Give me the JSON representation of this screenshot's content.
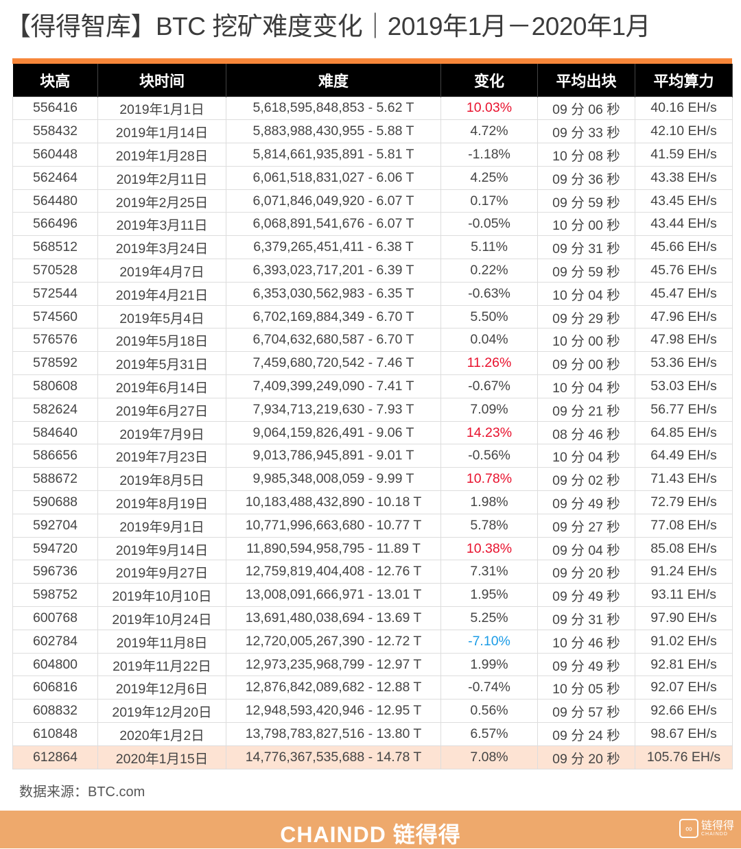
{
  "title": "【得得智库】BTC 挖矿难度变化｜2019年1月－2020年1月",
  "headers": [
    "块高",
    "块时间",
    "难度",
    "变化",
    "平均出块",
    "平均算力"
  ],
  "colors": {
    "accent": "#f7873a",
    "positive_large": "#e8112d",
    "negative_large": "#1a9be6",
    "highlight_row": "#fde3d3",
    "footer": "#eea96c"
  },
  "rows": [
    [
      "556416",
      "2019年1月1日",
      "5,618,595,848,853 - 5.62 T",
      "10.03%",
      "09 分 06 秒",
      "40.16 EH/s",
      "#e8112d"
    ],
    [
      "558432",
      "2019年1月14日",
      "5,883,988,430,955 - 5.88 T",
      "4.72%",
      "09 分 33 秒",
      "42.10 EH/s",
      ""
    ],
    [
      "560448",
      "2019年1月28日",
      "5,814,661,935,891 - 5.81 T",
      "-1.18%",
      "10 分 08 秒",
      "41.59 EH/s",
      ""
    ],
    [
      "562464",
      "2019年2月11日",
      "6,061,518,831,027 - 6.06 T",
      "4.25%",
      "09 分 36 秒",
      "43.38 EH/s",
      ""
    ],
    [
      "564480",
      "2019年2月25日",
      "6,071,846,049,920 - 6.07 T",
      "0.17%",
      "09 分 59 秒",
      "43.45 EH/s",
      ""
    ],
    [
      "566496",
      "2019年3月11日",
      "6,068,891,541,676 - 6.07 T",
      "-0.05%",
      "10 分 00 秒",
      "43.44 EH/s",
      ""
    ],
    [
      "568512",
      "2019年3月24日",
      "6,379,265,451,411 - 6.38 T",
      "5.11%",
      "09 分 31 秒",
      "45.66 EH/s",
      ""
    ],
    [
      "570528",
      "2019年4月7日",
      "6,393,023,717,201 - 6.39 T",
      "0.22%",
      "09 分 59 秒",
      "45.76 EH/s",
      ""
    ],
    [
      "572544",
      "2019年4月21日",
      "6,353,030,562,983 - 6.35 T",
      "-0.63%",
      "10 分 04 秒",
      "45.47 EH/s",
      ""
    ],
    [
      "574560",
      "2019年5月4日",
      "6,702,169,884,349 - 6.70 T",
      "5.50%",
      "09 分 29 秒",
      "47.96 EH/s",
      ""
    ],
    [
      "576576",
      "2019年5月18日",
      "6,704,632,680,587 - 6.70 T",
      "0.04%",
      "10 分 00 秒",
      "47.98 EH/s",
      ""
    ],
    [
      "578592",
      "2019年5月31日",
      "7,459,680,720,542 - 7.46 T",
      "11.26%",
      "09 分 00 秒",
      "53.36 EH/s",
      "#e8112d"
    ],
    [
      "580608",
      "2019年6月14日",
      "7,409,399,249,090 - 7.41 T",
      "-0.67%",
      "10 分 04 秒",
      "53.03 EH/s",
      ""
    ],
    [
      "582624",
      "2019年6月27日",
      "7,934,713,219,630 - 7.93 T",
      "7.09%",
      "09 分 21 秒",
      "56.77 EH/s",
      ""
    ],
    [
      "584640",
      "2019年7月9日",
      "9,064,159,826,491 - 9.06 T",
      "14.23%",
      "08 分 46 秒",
      "64.85 EH/s",
      "#e8112d"
    ],
    [
      "586656",
      "2019年7月23日",
      "9,013,786,945,891 - 9.01 T",
      "-0.56%",
      "10 分 04 秒",
      "64.49 EH/s",
      ""
    ],
    [
      "588672",
      "2019年8月5日",
      "9,985,348,008,059 - 9.99 T",
      "10.78%",
      "09 分 02 秒",
      "71.43 EH/s",
      "#e8112d"
    ],
    [
      "590688",
      "2019年8月19日",
      "10,183,488,432,890 - 10.18 T",
      "1.98%",
      "09 分 49 秒",
      "72.79 EH/s",
      ""
    ],
    [
      "592704",
      "2019年9月1日",
      "10,771,996,663,680 - 10.77 T",
      "5.78%",
      "09 分 27 秒",
      "77.08 EH/s",
      ""
    ],
    [
      "594720",
      "2019年9月14日",
      "11,890,594,958,795 - 11.89 T",
      "10.38%",
      "09 分 04 秒",
      "85.08 EH/s",
      "#e8112d"
    ],
    [
      "596736",
      "2019年9月27日",
      "12,759,819,404,408 - 12.76 T",
      "7.31%",
      "09 分 20 秒",
      "91.24 EH/s",
      ""
    ],
    [
      "598752",
      "2019年10月10日",
      "13,008,091,666,971 - 13.01 T",
      "1.95%",
      "09 分 49 秒",
      "93.11 EH/s",
      ""
    ],
    [
      "600768",
      "2019年10月24日",
      "13,691,480,038,694 - 13.69 T",
      "5.25%",
      "09 分 31 秒",
      "97.90 EH/s",
      ""
    ],
    [
      "602784",
      "2019年11月8日",
      "12,720,005,267,390 - 12.72 T",
      "-7.10%",
      "10 分 46 秒",
      "91.02 EH/s",
      "#1a9be6"
    ],
    [
      "604800",
      "2019年11月22日",
      "12,973,235,968,799 - 12.97 T",
      "1.99%",
      "09 分 49 秒",
      "92.81 EH/s",
      ""
    ],
    [
      "606816",
      "2019年12月6日",
      "12,876,842,089,682 - 12.88 T",
      "-0.74%",
      "10 分 05 秒",
      "92.07 EH/s",
      ""
    ],
    [
      "608832",
      "2019年12月20日",
      "12,948,593,420,946 - 12.95 T",
      "0.56%",
      "09 分 57 秒",
      "92.66 EH/s",
      ""
    ],
    [
      "610848",
      "2020年1月2日",
      "13,798,783,827,516 - 13.80 T",
      "6.57%",
      "09 分 24 秒",
      "98.67 EH/s",
      ""
    ],
    [
      "612864",
      "2020年1月15日",
      "14,776,367,535,688 - 14.78 T",
      "7.08%",
      "09 分 20 秒",
      "105.76 EH/s",
      ""
    ]
  ],
  "source": "数据来源：BTC.com",
  "footer": {
    "brand": "CHAINDD 链得得",
    "logo_text": "链得得",
    "logo_sub": "CHAINDD"
  }
}
